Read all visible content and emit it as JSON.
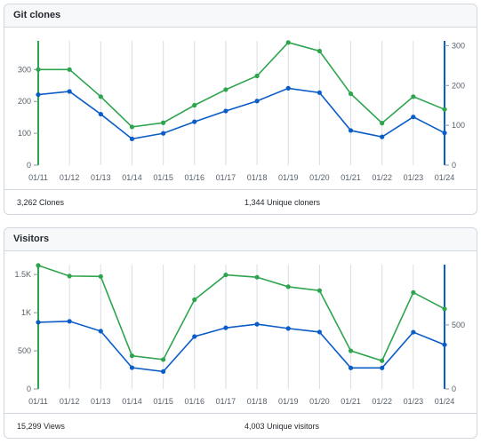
{
  "clones": {
    "title": "Git clones",
    "total_label": "3,262 Clones",
    "unique_label": "1,344 Unique cloners"
  },
  "visitors": {
    "title": "Visitors",
    "total_label": "15,299 Views",
    "unique_label": "4,003 Unique visitors"
  },
  "colors": {
    "total": "#2da44e",
    "unique": "#0a5cc7",
    "grid": "#d8dee4"
  },
  "chart_data": [
    {
      "type": "line",
      "title": "Git clones",
      "categories": [
        "01/11",
        "01/12",
        "01/13",
        "01/14",
        "01/15",
        "01/16",
        "01/17",
        "01/18",
        "01/19",
        "01/20",
        "01/21",
        "01/22",
        "01/23",
        "01/24"
      ],
      "left_axis": {
        "ticks": [
          0,
          100,
          200,
          300
        ],
        "ylim": [
          0,
          390
        ]
      },
      "right_axis": {
        "ticks": [
          0,
          100,
          200,
          300
        ],
        "ylim": [
          0,
          312
        ]
      },
      "series": [
        {
          "axis": "left",
          "values": [
            300,
            300,
            215,
            120,
            133,
            188,
            237,
            280,
            385,
            358,
            224,
            132,
            215,
            175
          ]
        },
        {
          "axis": "right",
          "values": [
            177,
            185,
            128,
            66,
            80,
            109,
            136,
            161,
            193,
            182,
            87,
            71,
            121,
            81
          ]
        }
      ],
      "grid": "vertical",
      "legend": "none"
    },
    {
      "type": "line",
      "title": "Visitors",
      "categories": [
        "01/11",
        "01/12",
        "01/13",
        "01/14",
        "01/15",
        "01/16",
        "01/17",
        "01/18",
        "01/19",
        "01/20",
        "01/21",
        "01/22",
        "01/23",
        "01/24"
      ],
      "left_axis": {
        "ticks": [
          0,
          500,
          1000,
          1500
        ],
        "tick_labels": [
          "0",
          "500",
          "1K",
          "1.5K"
        ],
        "ylim": [
          0,
          1630
        ]
      },
      "right_axis": {
        "ticks": [
          0,
          500
        ],
        "ylim": [
          0,
          970
        ]
      },
      "series": [
        {
          "axis": "left",
          "values": [
            1620,
            1480,
            1475,
            435,
            385,
            1170,
            1495,
            1465,
            1340,
            1290,
            500,
            370,
            1265,
            1050
          ]
        },
        {
          "axis": "right",
          "values": [
            520,
            528,
            451,
            166,
            136,
            409,
            477,
            505,
            472,
            444,
            164,
            164,
            443,
            345
          ]
        }
      ],
      "grid": "vertical",
      "legend": "none"
    }
  ]
}
